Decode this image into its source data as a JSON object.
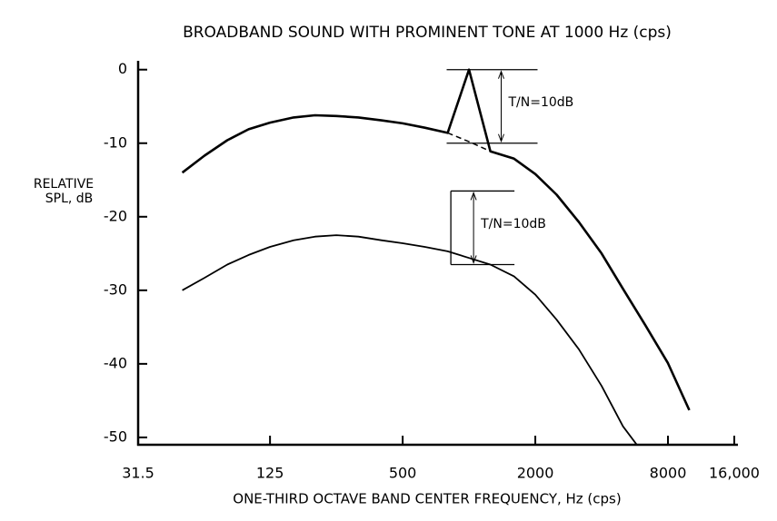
{
  "chart_data": {
    "type": "line",
    "title": "BROADBAND SOUND WITH PROMINENT TONE AT 1000 Hz (cps)",
    "xlabel": "ONE-THIRD OCTAVE BAND CENTER  FREQUENCY, Hz (cps)",
    "ylabel": [
      "RELATIVE",
      "SPL, dB"
    ],
    "xscale": "log",
    "xlim": [
      31.5,
      16000
    ],
    "xticks": [
      31.5,
      125,
      500,
      2000,
      8000,
      {
        "value": 16000,
        "label": "16,000"
      }
    ],
    "ylim": [
      -51,
      1.2
    ],
    "yticks": [
      0,
      -10,
      -20,
      -30,
      -40,
      -50
    ],
    "x": [
      50,
      63,
      80,
      100,
      125,
      160,
      200,
      250,
      315,
      400,
      500,
      630,
      800,
      1000,
      1250,
      1600,
      2000,
      2500,
      3150,
      4000,
      5000,
      6300,
      8000,
      10000
    ],
    "series": [
      {
        "color": "#000000",
        "width": 2.6,
        "dash": false,
        "values": [
          -14,
          -11.7,
          -9.6,
          -8.1,
          -7.2,
          -6.5,
          -6.2,
          -6.3,
          -6.5,
          -6.9,
          -7.3,
          -7.9,
          -8.6,
          0,
          -11.1,
          -12.1,
          -14.2,
          -17,
          -20.7,
          -25,
          -29.8,
          -34.7,
          -39.9,
          -46.3
        ]
      },
      {
        "color": "#000000",
        "width": 1.5,
        "dash": true,
        "values": [
          null,
          null,
          null,
          null,
          null,
          null,
          null,
          null,
          null,
          null,
          null,
          null,
          -8.6,
          -9.8,
          -11.1,
          null,
          null,
          null,
          null,
          null,
          null,
          null,
          null,
          null
        ]
      },
      {
        "color": "#000000",
        "width": 1.8,
        "dash": false,
        "values": [
          -30,
          -28.3,
          -26.5,
          -25.2,
          -24.1,
          -23.2,
          -22.7,
          -22.5,
          -22.7,
          -23.2,
          -23.6,
          -24.1,
          -24.7,
          -25.6,
          -26.5,
          -28.1,
          -30.6,
          -34,
          -38,
          -43,
          -48.5,
          -52.5,
          null,
          null
        ]
      }
    ],
    "annotations": [
      {
        "text": "T/N=10dB",
        "x": 1400,
        "y": [
          0,
          -10
        ]
      },
      {
        "text": "T/N=10dB",
        "x": 1100,
        "y": [
          -16.5,
          -26.5
        ]
      }
    ]
  }
}
